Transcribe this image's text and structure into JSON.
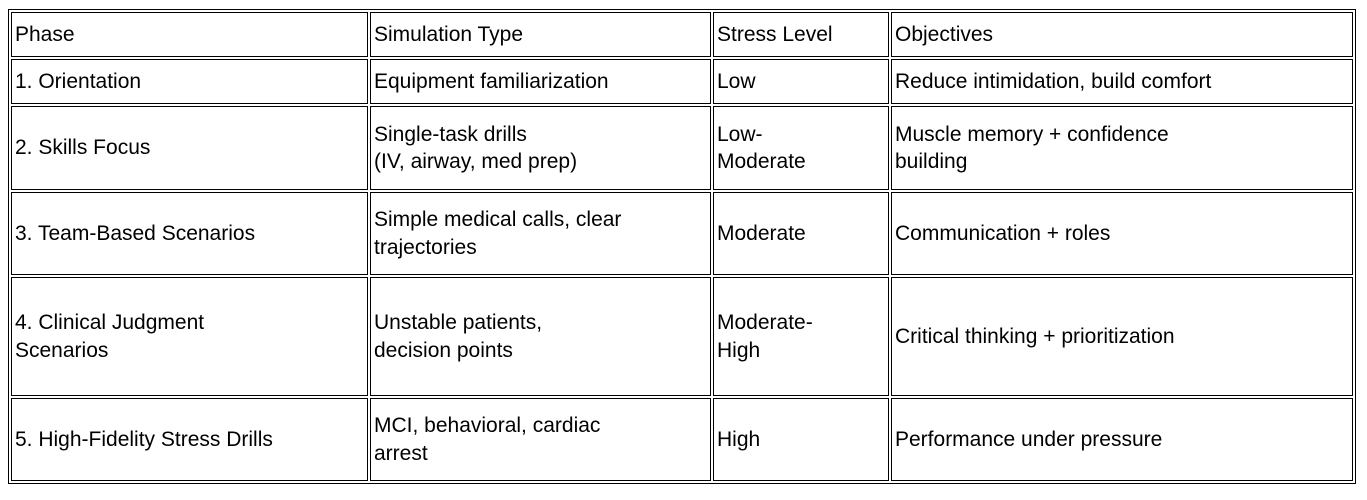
{
  "table": {
    "header": [
      "Phase",
      "Simulation Type",
      "Stress Level",
      "Objectives"
    ],
    "rows": [
      [
        "1. Orientation",
        "Equipment familiarization",
        "Low",
        "Reduce intimidation, build comfort"
      ],
      [
        "2. Skills Focus",
        "Single-task drills\n(IV, airway, med prep)",
        "Low-\nModerate",
        "Muscle memory + confidence\nbuilding"
      ],
      [
        "3. Team-Based Scenarios",
        "Simple medical calls, clear\ntrajectories",
        "Moderate",
        "Communication + roles"
      ],
      [
        "4. Clinical Judgment\nScenarios",
        "Unstable patients,\ndecision points",
        "Moderate-\nHigh",
        "Critical thinking + prioritization"
      ],
      [
        "5. High-Fidelity Stress Drills",
        "MCI, behavioral, cardiac\narrest",
        "High",
        "Performance under pressure"
      ]
    ]
  }
}
